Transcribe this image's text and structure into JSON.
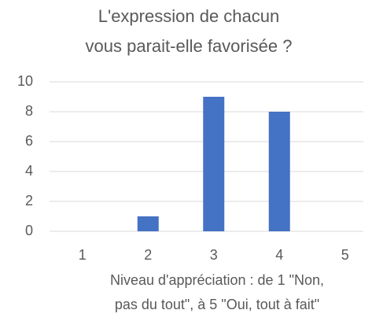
{
  "chart_data": {
    "type": "bar",
    "title": [
      "L'expression de chacun",
      "vous parait-elle favorisée ?"
    ],
    "x_label": [
      "Niveau d'appréciation : de 1 \"Non,",
      "pas du tout\", à 5 \"Oui, tout à fait\""
    ],
    "categories": [
      "1",
      "2",
      "3",
      "4",
      "5"
    ],
    "values": [
      0,
      1,
      9,
      8,
      0
    ],
    "color": "#4472c4",
    "ylim": [
      0,
      10
    ],
    "yticks": [
      0,
      2,
      4,
      6,
      8,
      10
    ],
    "grid": true
  }
}
